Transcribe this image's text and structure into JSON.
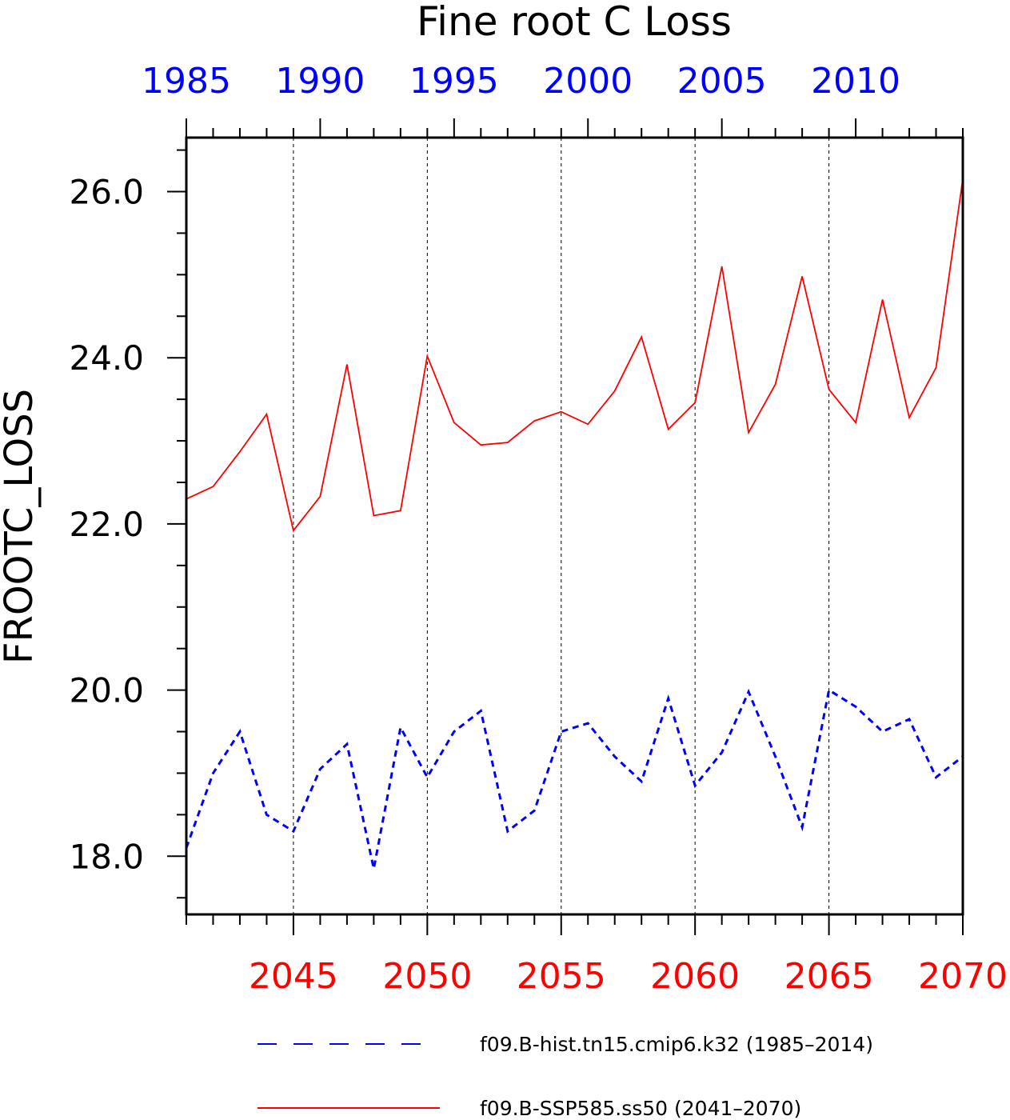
{
  "chart_data": {
    "type": "line",
    "title": "Fine root C Loss",
    "ylabel": "FROOTC_LOSS",
    "ylim": [
      17.3,
      26.65
    ],
    "yticks": [
      18.0,
      20.0,
      22.0,
      24.0,
      26.0
    ],
    "ytick_labels": [
      "18.0",
      "20.0",
      "22.0",
      "24.0",
      "26.0"
    ],
    "grid": "vertical dashed lines at major bottom-axis ticks",
    "legend_position": "bottom",
    "top_axis": {
      "color": "#0000ff",
      "range": [
        1985,
        2014
      ],
      "tick_values": [
        1985,
        1990,
        1995,
        2000,
        2005,
        2010
      ],
      "tick_labels": [
        "1985",
        "1990",
        "1995",
        "2000",
        "2005",
        "2010"
      ]
    },
    "bottom_axis": {
      "color": "#ff0000",
      "range": [
        2041,
        2070
      ],
      "tick_values": [
        2045,
        2050,
        2055,
        2060,
        2065,
        2070
      ],
      "tick_labels": [
        "2045",
        "2050",
        "2055",
        "2060",
        "2065",
        "2070"
      ]
    },
    "series": [
      {
        "name": "f09.B-hist.tn15.cmip6.k32 (1985–2014)",
        "axis": "top",
        "color": "#0000ff",
        "dash": "dashed",
        "x": [
          1985,
          1986,
          1987,
          1988,
          1989,
          1990,
          1991,
          1992,
          1993,
          1994,
          1995,
          1996,
          1997,
          1998,
          1999,
          2000,
          2001,
          2002,
          2003,
          2004,
          2005,
          2006,
          2007,
          2008,
          2009,
          2010,
          2011,
          2012,
          2013,
          2014
        ],
        "y": [
          18.1,
          19.0,
          19.5,
          18.5,
          18.3,
          19.05,
          19.35,
          17.85,
          19.55,
          18.95,
          19.5,
          19.75,
          18.3,
          18.55,
          19.5,
          19.6,
          19.2,
          18.9,
          19.9,
          18.85,
          19.25,
          19.98,
          19.2,
          18.35,
          20.0,
          19.8,
          19.5,
          19.65,
          18.95,
          19.2
        ]
      },
      {
        "name": "f09.B-SSP585.ss50 (2041–2070)",
        "axis": "bottom",
        "color": "#ff0000",
        "dash": "solid",
        "x": [
          2041,
          2042,
          2043,
          2044,
          2045,
          2046,
          2047,
          2048,
          2049,
          2050,
          2051,
          2052,
          2053,
          2054,
          2055,
          2056,
          2057,
          2058,
          2059,
          2060,
          2061,
          2062,
          2063,
          2064,
          2065,
          2066,
          2067,
          2068,
          2069,
          2070
        ],
        "y": [
          22.3,
          22.45,
          22.87,
          23.32,
          21.92,
          22.33,
          23.92,
          22.1,
          22.16,
          24.02,
          23.22,
          22.95,
          22.98,
          23.24,
          23.35,
          23.2,
          23.6,
          24.25,
          23.14,
          23.46,
          25.1,
          23.1,
          23.68,
          24.98,
          23.62,
          23.22,
          24.7,
          23.28,
          23.88,
          26.15
        ]
      }
    ]
  }
}
